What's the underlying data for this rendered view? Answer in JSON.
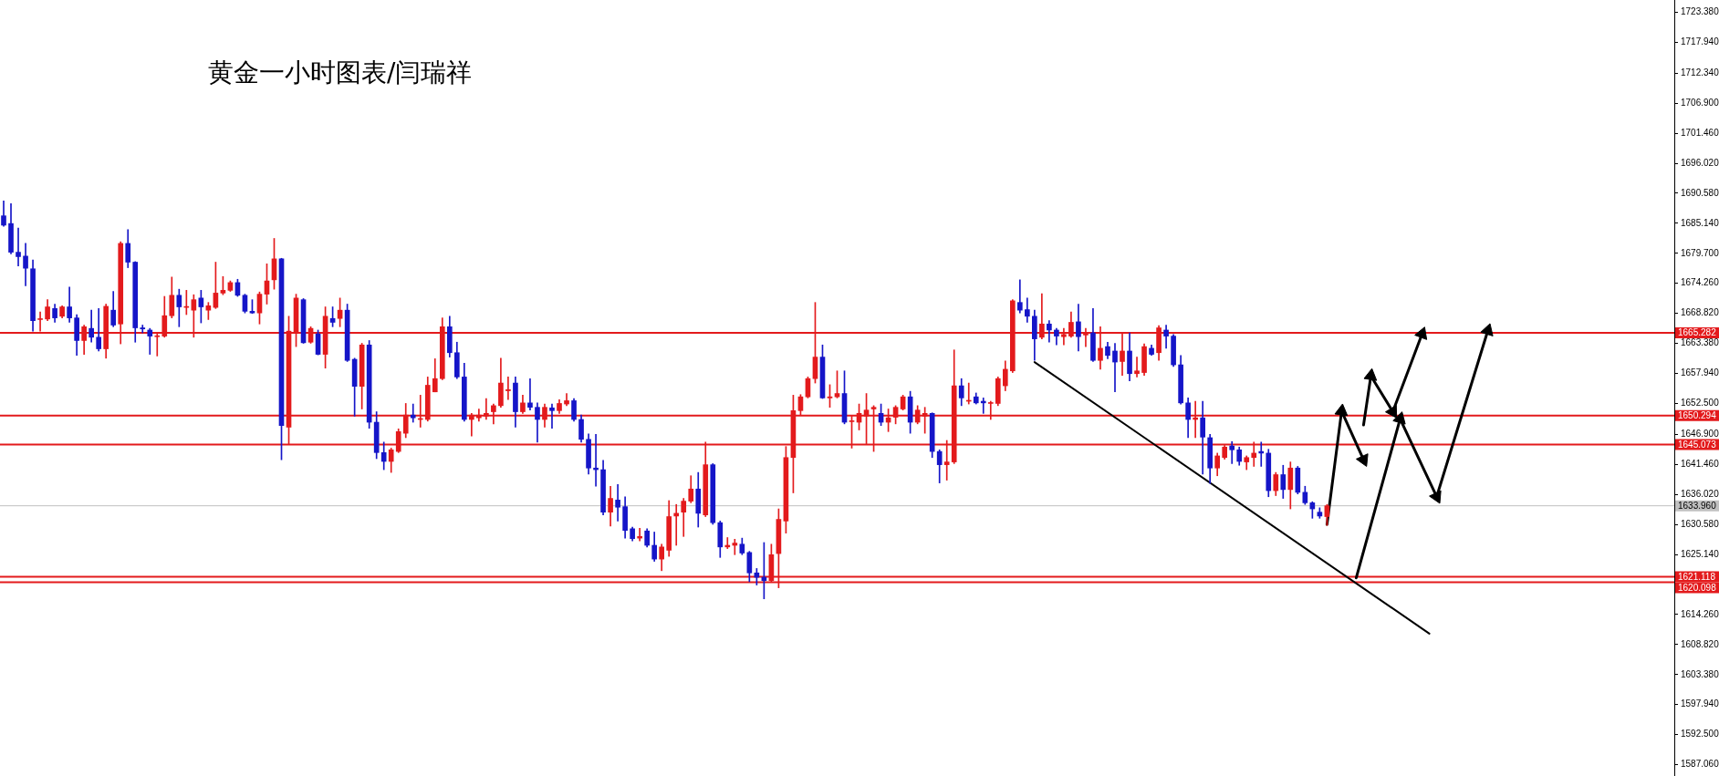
{
  "chart_data": {
    "type": "candlestick",
    "title": "黄金一小时图表/闫瑞祥",
    "categories": [
      null,
      null,
      null,
      null,
      null,
      null,
      null,
      null,
      null,
      null,
      null,
      null,
      null,
      null,
      null,
      null,
      null,
      null,
      null,
      null,
      null,
      null,
      null,
      null,
      null,
      null,
      null,
      null,
      null,
      null,
      null,
      null,
      null,
      null,
      null,
      null,
      null,
      null,
      null,
      null,
      null,
      null,
      null,
      null,
      null,
      null,
      null,
      null,
      null,
      null,
      null,
      null,
      null,
      null,
      null,
      null,
      null,
      null,
      null,
      null,
      null,
      null,
      null,
      null,
      null,
      null,
      null,
      null,
      null,
      null,
      null,
      null,
      null,
      null,
      null,
      null,
      null,
      null,
      null,
      null,
      null,
      null,
      null,
      null,
      null,
      null,
      null,
      null,
      null,
      null,
      null,
      null,
      null,
      null,
      null,
      null,
      null,
      null,
      null,
      null,
      null,
      null,
      null,
      null,
      null,
      null,
      null,
      null,
      null,
      null,
      null,
      null,
      null,
      null,
      null,
      null,
      null,
      null,
      null,
      null,
      null,
      null,
      null,
      null,
      null,
      null,
      null,
      null,
      null,
      null,
      null,
      null,
      null,
      null,
      null,
      null,
      null,
      null,
      null,
      null,
      null,
      null,
      null,
      null,
      null,
      null,
      null,
      null,
      null,
      null,
      null,
      null,
      null,
      null,
      null,
      null,
      null,
      null,
      null,
      null,
      null,
      null,
      null,
      null,
      null,
      null,
      null,
      null,
      null,
      null,
      null,
      null,
      null,
      null,
      null,
      null,
      null,
      null,
      null,
      null,
      null,
      null,
      null,
      null,
      null,
      null,
      null,
      null,
      null,
      null,
      null,
      null,
      null,
      null,
      null,
      null,
      null,
      null,
      null,
      null,
      null,
      null,
      null,
      null,
      null,
      null,
      null,
      null,
      null,
      null,
      null,
      null,
      null,
      null,
      null,
      null,
      null,
      null,
      null,
      null,
      null,
      null,
      null,
      null,
      null,
      null,
      null,
      null,
      null
    ],
    "ohlc": [
      [
        1686.5,
        1689.2,
        1684.6,
        1684.8
      ],
      [
        1685.1,
        1688.7,
        1679.6,
        1679.9
      ],
      [
        1679.9,
        1684.3,
        1677.4,
        1679.1
      ],
      [
        1679.2,
        1681.5,
        1673.8,
        1677.0
      ],
      [
        1676.9,
        1678.5,
        1665.6,
        1667.5
      ],
      [
        1667.7,
        1669.1,
        1665.6,
        1667.8
      ],
      [
        1667.8,
        1671.3,
        1667.5,
        1670.0
      ],
      [
        1669.7,
        1670.5,
        1667.2,
        1668.0
      ],
      [
        1668.3,
        1670.2,
        1668.0,
        1670.0
      ],
      [
        1670.0,
        1673.6,
        1667.2,
        1668.0
      ],
      [
        1668.0,
        1668.6,
        1661.2,
        1663.9
      ],
      [
        1663.9,
        1666.7,
        1661.4,
        1666.4
      ],
      [
        1666.1,
        1669.4,
        1663.6,
        1664.5
      ],
      [
        1664.5,
        1669.7,
        1662.0,
        1662.4
      ],
      [
        1662.4,
        1670.5,
        1660.7,
        1670.1
      ],
      [
        1669.4,
        1672.8,
        1666.4,
        1666.7
      ],
      [
        1666.9,
        1681.8,
        1663.3,
        1681.5
      ],
      [
        1681.5,
        1684.0,
        1677.1,
        1678.1
      ],
      [
        1678.1,
        1678.2,
        1663.6,
        1666.2
      ],
      [
        1666.2,
        1666.7,
        1665.3,
        1666.0
      ],
      [
        1665.8,
        1666.1,
        1661.4,
        1664.7
      ],
      [
        1664.6,
        1665.3,
        1661.1,
        1664.7
      ],
      [
        1664.7,
        1671.9,
        1664.5,
        1668.4
      ],
      [
        1668.4,
        1675.4,
        1668.0,
        1672.1
      ],
      [
        1672.1,
        1673.2,
        1666.4,
        1670.0
      ],
      [
        1669.9,
        1673.0,
        1668.6,
        1670.0
      ],
      [
        1669.4,
        1672.2,
        1664.5,
        1671.3
      ],
      [
        1671.6,
        1673.0,
        1667.1,
        1670.0
      ],
      [
        1669.4,
        1670.8,
        1667.7,
        1670.2
      ],
      [
        1669.9,
        1678.1,
        1669.7,
        1672.5
      ],
      [
        1672.5,
        1675.5,
        1672.2,
        1673.0
      ],
      [
        1673.0,
        1674.7,
        1672.8,
        1674.4
      ],
      [
        1674.4,
        1675.0,
        1671.9,
        1672.1
      ],
      [
        1672.1,
        1672.3,
        1668.9,
        1669.2
      ],
      [
        1669.2,
        1671.3,
        1668.8,
        1668.9
      ],
      [
        1668.9,
        1672.7,
        1666.9,
        1672.3
      ],
      [
        1672.3,
        1677.8,
        1670.5,
        1674.7
      ],
      [
        1674.9,
        1682.4,
        1673.2,
        1678.7
      ],
      [
        1678.7,
        1678.8,
        1642.3,
        1648.5
      ],
      [
        1648.2,
        1668.3,
        1645.2,
        1665.6
      ],
      [
        1665.3,
        1672.3,
        1662.8,
        1671.6
      ],
      [
        1671.3,
        1671.5,
        1663.4,
        1663.5
      ],
      [
        1663.6,
        1666.4,
        1663.4,
        1666.1
      ],
      [
        1665.1,
        1665.8,
        1661.3,
        1661.4
      ],
      [
        1661.4,
        1670.0,
        1658.9,
        1668.3
      ],
      [
        1667.9,
        1670.0,
        1666.4,
        1667.2
      ],
      [
        1667.9,
        1671.6,
        1666.4,
        1669.4
      ],
      [
        1669.4,
        1670.5,
        1660.1,
        1660.3
      ],
      [
        1660.5,
        1660.7,
        1650.2,
        1655.6
      ],
      [
        1655.6,
        1663.4,
        1651.5,
        1663.1
      ],
      [
        1663.1,
        1663.9,
        1648.0,
        1649.1
      ],
      [
        1649.1,
        1651.0,
        1642.5,
        1643.6
      ],
      [
        1643.6,
        1645.5,
        1640.5,
        1642.0
      ],
      [
        1642.0,
        1644.4,
        1640.0,
        1644.1
      ],
      [
        1643.8,
        1647.9,
        1643.6,
        1647.4
      ],
      [
        1647.1,
        1652.5,
        1646.3,
        1650.4
      ],
      [
        1650.4,
        1652.4,
        1649.1,
        1649.9
      ],
      [
        1649.6,
        1654.0,
        1648.2,
        1649.7
      ],
      [
        1649.6,
        1657.3,
        1649.3,
        1655.8
      ],
      [
        1654.6,
        1660.6,
        1654.6,
        1657.0
      ],
      [
        1657.0,
        1668.0,
        1656.8,
        1666.4
      ],
      [
        1666.4,
        1668.3,
        1660.9,
        1661.7
      ],
      [
        1661.7,
        1663.6,
        1657.0,
        1657.3
      ],
      [
        1657.3,
        1659.8,
        1649.3,
        1649.6
      ],
      [
        1649.6,
        1650.7,
        1646.6,
        1650.4
      ],
      [
        1649.9,
        1651.5,
        1649.3,
        1650.4
      ],
      [
        1650.2,
        1653.4,
        1649.6,
        1650.7
      ],
      [
        1651.0,
        1652.4,
        1648.8,
        1652.1
      ],
      [
        1652.1,
        1660.7,
        1651.8,
        1656.2
      ],
      [
        1654.8,
        1657.3,
        1653.2,
        1655.0
      ],
      [
        1656.2,
        1657.3,
        1648.2,
        1651.0
      ],
      [
        1651.0,
        1654.0,
        1650.7,
        1652.6
      ],
      [
        1652.6,
        1657.0,
        1651.3,
        1651.8
      ],
      [
        1651.8,
        1652.6,
        1645.5,
        1649.6
      ],
      [
        1649.6,
        1652.4,
        1648.2,
        1651.8
      ],
      [
        1651.7,
        1652.4,
        1648.0,
        1651.2
      ],
      [
        1651.2,
        1653.2,
        1650.7,
        1652.5
      ],
      [
        1652.4,
        1654.3,
        1652.1,
        1653.0
      ],
      [
        1653.0,
        1653.4,
        1649.3,
        1649.6
      ],
      [
        1649.6,
        1650.4,
        1645.5,
        1646.0
      ],
      [
        1646.0,
        1647.0,
        1639.7,
        1640.8
      ],
      [
        1640.8,
        1646.9,
        1637.5,
        1640.5
      ],
      [
        1640.5,
        1642.2,
        1632.3,
        1632.8
      ],
      [
        1632.8,
        1637.5,
        1630.3,
        1635.3
      ],
      [
        1635.0,
        1637.8,
        1631.2,
        1633.7
      ],
      [
        1633.8,
        1635.6,
        1628.1,
        1629.5
      ],
      [
        1629.8,
        1630.1,
        1627.6,
        1628.0
      ],
      [
        1628.1,
        1629.9,
        1627.6,
        1628.4
      ],
      [
        1629.4,
        1629.8,
        1626.5,
        1626.8
      ],
      [
        1626.8,
        1629.2,
        1623.9,
        1624.3
      ],
      [
        1624.3,
        1627.0,
        1622.2,
        1626.5
      ],
      [
        1625.9,
        1634.9,
        1624.8,
        1632.0
      ],
      [
        1632.1,
        1634.2,
        1626.8,
        1632.6
      ],
      [
        1632.8,
        1635.3,
        1628.4,
        1634.8
      ],
      [
        1634.8,
        1639.4,
        1634.5,
        1637.0
      ],
      [
        1637.0,
        1640.0,
        1630.1,
        1632.6
      ],
      [
        1632.3,
        1645.5,
        1632.0,
        1641.4
      ],
      [
        1641.4,
        1641.6,
        1630.6,
        1630.9
      ],
      [
        1630.9,
        1631.2,
        1624.6,
        1626.5
      ],
      [
        1626.5,
        1628.2,
        1626.2,
        1626.8
      ],
      [
        1626.8,
        1627.9,
        1625.1,
        1627.2
      ],
      [
        1627.0,
        1628.1,
        1625.1,
        1625.4
      ],
      [
        1625.5,
        1625.7,
        1620.2,
        1621.8
      ],
      [
        1621.8,
        1622.6,
        1619.6,
        1621.0
      ],
      [
        1621.0,
        1627.3,
        1617.1,
        1620.4
      ],
      [
        1620.4,
        1627.0,
        1620.2,
        1625.1
      ],
      [
        1625.3,
        1633.4,
        1619.1,
        1631.5
      ],
      [
        1631.2,
        1644.7,
        1629.0,
        1642.7
      ],
      [
        1642.7,
        1654.0,
        1636.3,
        1651.2
      ],
      [
        1651.2,
        1654.1,
        1650.4,
        1653.7
      ],
      [
        1653.7,
        1657.3,
        1653.5,
        1657.0
      ],
      [
        1657.0,
        1670.8,
        1656.2,
        1660.9
      ],
      [
        1660.9,
        1663.1,
        1653.4,
        1653.5
      ],
      [
        1653.5,
        1655.9,
        1651.8,
        1653.7
      ],
      [
        1653.7,
        1658.4,
        1653.5,
        1654.3
      ],
      [
        1654.3,
        1658.4,
        1648.8,
        1649.1
      ],
      [
        1649.2,
        1650.2,
        1644.4,
        1649.3
      ],
      [
        1649.1,
        1652.4,
        1647.7,
        1650.7
      ],
      [
        1650.2,
        1654.3,
        1645.2,
        1651.3
      ],
      [
        1651.5,
        1652.1,
        1643.8,
        1651.8
      ],
      [
        1650.7,
        1652.4,
        1648.5,
        1649.1
      ],
      [
        1649.1,
        1651.5,
        1647.4,
        1649.9
      ],
      [
        1650.0,
        1652.1,
        1648.8,
        1651.8
      ],
      [
        1651.5,
        1654.0,
        1651.3,
        1653.7
      ],
      [
        1653.7,
        1654.7,
        1647.1,
        1649.1
      ],
      [
        1649.1,
        1652.1,
        1648.8,
        1651.3
      ],
      [
        1650.2,
        1651.8,
        1647.1,
        1650.7
      ],
      [
        1650.7,
        1650.8,
        1642.7,
        1643.8
      ],
      [
        1643.8,
        1644.1,
        1638.1,
        1641.4
      ],
      [
        1641.4,
        1645.8,
        1638.6,
        1641.9
      ],
      [
        1641.9,
        1662.2,
        1641.6,
        1655.7
      ],
      [
        1655.7,
        1657.0,
        1652.1,
        1653.5
      ],
      [
        1652.9,
        1656.2,
        1652.4,
        1653.0
      ],
      [
        1653.7,
        1654.4,
        1652.4,
        1652.6
      ],
      [
        1652.9,
        1653.5,
        1650.7,
        1652.6
      ],
      [
        1652.5,
        1652.9,
        1649.6,
        1652.6
      ],
      [
        1652.5,
        1657.3,
        1652.1,
        1657.0
      ],
      [
        1655.7,
        1660.2,
        1654.8,
        1658.7
      ],
      [
        1658.4,
        1671.3,
        1658.1,
        1671.1
      ],
      [
        1670.8,
        1674.9,
        1668.9,
        1669.4
      ],
      [
        1669.5,
        1671.6,
        1667.2,
        1668.3
      ],
      [
        1668.3,
        1669.4,
        1660.3,
        1664.2
      ],
      [
        1664.5,
        1672.4,
        1664.2,
        1666.9
      ],
      [
        1666.9,
        1667.5,
        1663.6,
        1665.8
      ],
      [
        1665.8,
        1666.1,
        1663.1,
        1664.7
      ],
      [
        1664.6,
        1666.1,
        1663.1,
        1665.0
      ],
      [
        1664.7,
        1669.1,
        1664.5,
        1667.2
      ],
      [
        1667.3,
        1670.5,
        1662.0,
        1664.6
      ],
      [
        1664.9,
        1666.1,
        1662.8,
        1665.3
      ],
      [
        1665.3,
        1669.7,
        1660.1,
        1660.3
      ],
      [
        1660.3,
        1666.4,
        1658.7,
        1662.5
      ],
      [
        1662.8,
        1663.6,
        1660.6,
        1661.2
      ],
      [
        1662.0,
        1663.4,
        1654.6,
        1660.0
      ],
      [
        1660.1,
        1665.3,
        1657.6,
        1662.0
      ],
      [
        1662.0,
        1665.3,
        1656.6,
        1657.9
      ],
      [
        1657.9,
        1660.9,
        1657.3,
        1658.4
      ],
      [
        1658.1,
        1663.3,
        1657.6,
        1662.8
      ],
      [
        1662.5,
        1663.1,
        1661.2,
        1661.4
      ],
      [
        1661.7,
        1666.6,
        1660.3,
        1666.2
      ],
      [
        1665.8,
        1666.7,
        1662.5,
        1664.7
      ],
      [
        1664.7,
        1665.0,
        1659.2,
        1659.5
      ],
      [
        1659.5,
        1661.2,
        1652.4,
        1652.6
      ],
      [
        1652.6,
        1653.5,
        1646.3,
        1649.6
      ],
      [
        1649.6,
        1652.9,
        1646.3,
        1649.9
      ],
      [
        1649.9,
        1652.9,
        1639.7,
        1646.4
      ],
      [
        1646.3,
        1646.9,
        1638.0,
        1640.8
      ],
      [
        1640.8,
        1643.5,
        1639.4,
        1643.0
      ],
      [
        1642.7,
        1644.9,
        1642.4,
        1644.6
      ],
      [
        1644.8,
        1645.6,
        1641.6,
        1644.1
      ],
      [
        1644.1,
        1644.6,
        1641.3,
        1642.0
      ],
      [
        1641.9,
        1643.0,
        1640.5,
        1642.7
      ],
      [
        1642.7,
        1645.5,
        1641.1,
        1643.5
      ],
      [
        1643.8,
        1645.5,
        1641.1,
        1643.5
      ],
      [
        1643.5,
        1644.2,
        1635.6,
        1636.7
      ],
      [
        1636.7,
        1640.0,
        1635.8,
        1639.6
      ],
      [
        1639.6,
        1641.3,
        1635.3,
        1636.9
      ],
      [
        1636.9,
        1641.9,
        1633.4,
        1640.8
      ],
      [
        1640.8,
        1641.1,
        1636.1,
        1636.4
      ],
      [
        1636.4,
        1637.5,
        1634.2,
        1634.5
      ],
      [
        1634.5,
        1634.7,
        1631.7,
        1633.4
      ],
      [
        1632.8,
        1633.6,
        1631.7,
        1632.1
      ],
      [
        1632.0,
        1634.2,
        1630.4,
        1633.96
      ],
      null,
      null,
      null,
      null,
      null,
      null,
      null,
      null,
      null,
      null,
      null,
      null,
      null,
      null,
      null,
      null,
      null,
      null,
      null,
      null,
      null,
      null,
      null,
      null,
      null,
      null,
      null,
      null,
      null,
      null,
      null,
      null,
      null,
      null,
      null,
      null,
      null,
      null,
      null,
      null,
      null,
      null,
      null,
      null,
      null,
      null,
      null
    ],
    "colors": [
      "#1515c8",
      "#1515c8",
      "#1515c8",
      "#1515c8",
      "#1515c8",
      "#e31a1c",
      "#e31a1c",
      "#1515c8",
      "#e31a1c",
      "#1515c8",
      "#1515c8",
      "#e31a1c",
      "#1515c8",
      "#1515c8",
      "#e31a1c",
      "#1515c8",
      "#e31a1c",
      "#1515c8",
      "#1515c8",
      "#1515c8",
      "#1515c8",
      "#e31a1c",
      "#e31a1c",
      "#e31a1c",
      "#1515c8",
      "#e31a1c",
      "#e31a1c",
      "#1515c8",
      "#e31a1c",
      "#e31a1c",
      "#e31a1c",
      "#e31a1c",
      "#1515c8",
      "#1515c8",
      "#1515c8",
      "#e31a1c",
      "#e31a1c",
      "#e31a1c",
      "#1515c8",
      "#e31a1c",
      "#e31a1c",
      "#1515c8",
      "#e31a1c",
      "#1515c8",
      "#e31a1c",
      "#1515c8",
      "#e31a1c",
      "#1515c8",
      "#1515c8",
      "#e31a1c",
      "#1515c8",
      "#1515c8",
      "#1515c8",
      "#e31a1c",
      "#e31a1c",
      "#e31a1c",
      "#1515c8",
      "#e31a1c",
      "#e31a1c",
      "#e31a1c",
      "#e31a1c",
      "#1515c8",
      "#1515c8",
      "#1515c8",
      "#e31a1c",
      "#e31a1c",
      "#e31a1c",
      "#e31a1c",
      "#e31a1c",
      "#e31a1c",
      "#1515c8",
      "#e31a1c",
      "#1515c8",
      "#1515c8",
      "#e31a1c",
      "#1515c8",
      "#e31a1c",
      "#e31a1c",
      "#1515c8",
      "#1515c8",
      "#1515c8",
      "#1515c8",
      "#1515c8",
      "#e31a1c",
      "#1515c8",
      "#1515c8",
      "#1515c8",
      "#e31a1c",
      "#1515c8",
      "#1515c8",
      "#e31a1c",
      "#e31a1c",
      "#e31a1c",
      "#e31a1c",
      "#e31a1c",
      "#1515c8",
      "#e31a1c",
      "#1515c8",
      "#1515c8",
      "#e31a1c",
      "#e31a1c",
      "#1515c8",
      "#1515c8",
      "#1515c8",
      "#1515c8",
      "#e31a1c",
      "#e31a1c",
      "#e31a1c",
      "#e31a1c",
      "#e31a1c",
      "#e31a1c",
      "#e31a1c",
      "#1515c8",
      "#e31a1c",
      "#e31a1c",
      "#1515c8",
      "#e31a1c",
      "#e31a1c",
      "#e31a1c",
      "#e31a1c",
      "#1515c8",
      "#e31a1c",
      "#e31a1c",
      "#e31a1c",
      "#1515c8",
      "#e31a1c",
      "#e31a1c",
      "#1515c8",
      "#1515c8",
      "#e31a1c",
      "#e31a1c",
      "#1515c8",
      "#e31a1c",
      "#1515c8",
      "#1515c8",
      "#e31a1c",
      "#e31a1c",
      "#e31a1c",
      "#e31a1c",
      "#1515c8",
      "#1515c8",
      "#1515c8",
      "#e31a1c",
      "#1515c8",
      "#1515c8",
      "#e31a1c",
      "#e31a1c",
      "#1515c8",
      "#e31a1c",
      "#1515c8",
      "#e31a1c",
      "#1515c8",
      "#1515c8",
      "#e31a1c",
      "#1515c8",
      "#e31a1c",
      "#e31a1c",
      "#1515c8",
      "#e31a1c",
      "#1515c8",
      "#1515c8",
      "#1515c8",
      "#1515c8",
      "#e31a1c",
      "#1515c8",
      "#1515c8",
      "#e31a1c",
      "#e31a1c",
      "#1515c8",
      "#1515c8",
      "#e31a1c",
      "#e31a1c",
      "#1515c8",
      "#1515c8",
      "#e31a1c",
      "#1515c8",
      "#e31a1c",
      "#1515c8",
      "#1515c8",
      "#1515c8",
      "#1515c8",
      "#e31a1c",
      null,
      null,
      null,
      null,
      null,
      null,
      null,
      null,
      null,
      null,
      null,
      null,
      null,
      null,
      null,
      null,
      null,
      null,
      null,
      null,
      null,
      null,
      null,
      null,
      null,
      null,
      null,
      null,
      null,
      null,
      null,
      null,
      null,
      null,
      null,
      null,
      null,
      null,
      null,
      null,
      null,
      null,
      null,
      null,
      null,
      null,
      null
    ],
    "ylim": [
      1585.0,
      1725.6
    ],
    "yticks": [
      {
        "value": 1587.06,
        "label": "1587.060"
      },
      {
        "value": 1592.5,
        "label": "1592.500"
      },
      {
        "value": 1597.94,
        "label": "1597.940"
      },
      {
        "value": 1603.38,
        "label": "1603.380"
      },
      {
        "value": 1608.82,
        "label": "1608.820"
      },
      {
        "value": 1614.26,
        "label": "1614.260"
      },
      {
        "value": 1625.14,
        "label": "1625.140"
      },
      {
        "value": 1630.58,
        "label": "1630.580"
      },
      {
        "value": 1636.02,
        "label": "1636.020"
      },
      {
        "value": 1641.46,
        "label": "1641.460"
      },
      {
        "value": 1646.9,
        "label": "1646.900"
      },
      {
        "value": 1652.5,
        "label": "1652.500"
      },
      {
        "value": 1657.94,
        "label": "1657.940"
      },
      {
        "value": 1663.38,
        "label": "1663.380"
      },
      {
        "value": 1668.82,
        "label": "1668.820"
      },
      {
        "value": 1674.26,
        "label": "1674.260"
      },
      {
        "value": 1679.7,
        "label": "1679.700"
      },
      {
        "value": 1685.14,
        "label": "1685.140"
      },
      {
        "value": 1690.58,
        "label": "1690.580"
      },
      {
        "value": 1696.02,
        "label": "1696.020"
      },
      {
        "value": 1701.46,
        "label": "1701.460"
      },
      {
        "value": 1706.9,
        "label": "1706.900"
      },
      {
        "value": 1712.34,
        "label": "1712.340"
      },
      {
        "value": 1717.94,
        "label": "1717.940"
      },
      {
        "value": 1723.38,
        "label": "1723.380"
      }
    ],
    "tick_labels": "y",
    "grid": false,
    "legend": false,
    "ref_lines": [
      {
        "axis": "y",
        "value": 1665.282,
        "label": "1665.282",
        "color": "#e31a1c"
      },
      {
        "axis": "y",
        "value": 1650.294,
        "label": "1650.294",
        "color": "#e31a1c"
      },
      {
        "axis": "y",
        "value": 1645.073,
        "label": "1645.073",
        "color": "#e31a1c"
      },
      {
        "axis": "y",
        "value": 1633.96,
        "label": "1633.960",
        "color": "#c0c0c0"
      },
      {
        "axis": "y",
        "value": 1621.118,
        "label": "1621.118",
        "color": "#e31a1c"
      },
      {
        "axis": "y",
        "value": 1620.098,
        "label": "1620.098",
        "color": "#e31a1c"
      }
    ],
    "series": [
      {
        "type": "line",
        "color": "#000000",
        "marker": "none",
        "values": [
          null,
          null,
          null,
          null,
          null,
          null,
          null,
          null,
          null,
          null,
          null,
          null,
          null,
          null,
          null,
          null,
          null,
          null,
          null,
          null,
          null,
          null,
          null,
          null,
          null,
          null,
          null,
          null,
          null,
          null,
          null,
          null,
          null,
          null,
          null,
          null,
          null,
          null,
          null,
          null,
          null,
          null,
          null,
          null,
          null,
          null,
          null,
          null,
          null,
          null,
          null,
          null,
          null,
          null,
          null,
          null,
          null,
          null,
          null,
          null,
          null,
          null,
          null,
          null,
          null,
          null,
          null,
          null,
          null,
          null,
          null,
          null,
          null,
          null,
          null,
          null,
          null,
          null,
          null,
          null,
          null,
          null,
          null,
          null,
          null,
          null,
          null,
          null,
          null,
          null,
          null,
          null,
          null,
          null,
          null,
          null,
          null,
          null,
          null,
          null,
          null,
          null,
          null,
          null,
          null,
          null,
          null,
          null,
          null,
          null,
          null,
          null,
          null,
          null,
          null,
          null,
          null,
          null,
          null,
          null,
          null,
          null,
          null,
          null,
          null,
          null,
          null,
          null,
          null,
          null,
          null,
          null,
          null,
          null,
          null,
          null,
          null,
          null,
          null,
          null,
          null,
          1660.0,
          null,
          null,
          null,
          null,
          null,
          null,
          null,
          null,
          null,
          null,
          null,
          null,
          null,
          null,
          null,
          null,
          null,
          null,
          null,
          null,
          null,
          null,
          null,
          null,
          null,
          null,
          null,
          null,
          null,
          null,
          null,
          null,
          null,
          null,
          null,
          null,
          null,
          null,
          null,
          null,
          null,
          null,
          null,
          null,
          null,
          null,
          null,
          null,
          null,
          null,
          null,
          null,
          null,
          1610.8,
          null,
          null,
          null,
          null,
          null,
          null,
          null,
          null,
          null,
          null,
          null,
          null,
          null,
          null,
          null,
          null,
          null,
          null,
          null,
          null,
          null,
          null,
          null,
          null,
          null,
          null,
          null,
          null,
          null,
          null,
          null,
          null,
          null
        ]
      },
      {
        "type": "line",
        "color": "#000000",
        "marker": "triangle",
        "values": [
          null,
          null,
          null,
          null,
          null,
          null,
          null,
          null,
          null,
          null,
          null,
          null,
          null,
          null,
          null,
          null,
          null,
          null,
          null,
          null,
          null,
          null,
          null,
          null,
          null,
          null,
          null,
          null,
          null,
          null,
          null,
          null,
          null,
          null,
          null,
          null,
          null,
          null,
          null,
          null,
          null,
          null,
          null,
          null,
          null,
          null,
          null,
          null,
          null,
          null,
          null,
          null,
          null,
          null,
          null,
          null,
          null,
          null,
          null,
          null,
          null,
          null,
          null,
          null,
          null,
          null,
          null,
          null,
          null,
          null,
          null,
          null,
          null,
          null,
          null,
          null,
          null,
          null,
          null,
          null,
          null,
          null,
          null,
          null,
          null,
          null,
          null,
          null,
          null,
          null,
          null,
          null,
          null,
          null,
          null,
          null,
          null,
          null,
          null,
          null,
          null,
          null,
          null,
          null,
          null,
          null,
          null,
          null,
          null,
          null,
          null,
          null,
          null,
          null,
          null,
          null,
          null,
          null,
          null,
          null,
          null,
          null,
          null,
          null,
          null,
          null,
          null,
          null,
          null,
          null,
          null,
          null,
          null,
          null,
          null,
          null,
          null,
          null,
          null,
          null,
          null,
          null,
          null,
          null,
          null,
          null,
          null,
          null,
          null,
          null,
          null,
          null,
          null,
          null,
          null,
          null,
          null,
          null,
          null,
          null,
          null,
          null,
          null,
          null,
          null,
          null,
          null,
          null,
          null,
          null,
          null,
          null,
          null,
          null,
          null,
          null,
          null,
          null,
          null,
          null,
          null,
          1630.6,
          null,
          1651.1,
          null,
          null,
          1642.3,
          null,
          null,
          null,
          null,
          null,
          null,
          null,
          null,
          null,
          null,
          null,
          null,
          null,
          null,
          null,
          null,
          null,
          null,
          null,
          null,
          null,
          null,
          null,
          null,
          null,
          null,
          null,
          null,
          null,
          null,
          null,
          null,
          null,
          null,
          null,
          null,
          null,
          null,
          null,
          null,
          null,
          null
        ]
      },
      {
        "type": "line",
        "color": "#000000",
        "marker": "triangle",
        "values": [
          null,
          null,
          null,
          null,
          null,
          null,
          null,
          null,
          null,
          null,
          null,
          null,
          null,
          null,
          null,
          null,
          null,
          null,
          null,
          null,
          null,
          null,
          null,
          null,
          null,
          null,
          null,
          null,
          null,
          null,
          null,
          null,
          null,
          null,
          null,
          null,
          null,
          null,
          null,
          null,
          null,
          null,
          null,
          null,
          null,
          null,
          null,
          null,
          null,
          null,
          null,
          null,
          null,
          null,
          null,
          null,
          null,
          null,
          null,
          null,
          null,
          null,
          null,
          null,
          null,
          null,
          null,
          null,
          null,
          null,
          null,
          null,
          null,
          null,
          null,
          null,
          null,
          null,
          null,
          null,
          null,
          null,
          null,
          null,
          null,
          null,
          null,
          null,
          null,
          null,
          null,
          null,
          null,
          null,
          null,
          null,
          null,
          null,
          null,
          null,
          null,
          null,
          null,
          null,
          null,
          null,
          null,
          null,
          null,
          null,
          null,
          null,
          null,
          null,
          null,
          null,
          null,
          null,
          null,
          null,
          null,
          null,
          null,
          null,
          null,
          null,
          null,
          null,
          null,
          null,
          null,
          null,
          null,
          null,
          null,
          null,
          null,
          null,
          null,
          null,
          null,
          null,
          null,
          null,
          null,
          null,
          null,
          null,
          null,
          null,
          null,
          null,
          null,
          null,
          null,
          null,
          null,
          null,
          null,
          null,
          null,
          null,
          null,
          null,
          null,
          null,
          null,
          null,
          null,
          null,
          null,
          null,
          null,
          null,
          null,
          null,
          null,
          null,
          null,
          null,
          null,
          null,
          null,
          null,
          null,
          null,
          1648.6,
          1657.5,
          null,
          null,
          1651.0,
          null,
          null,
          null,
          1665.1,
          null,
          null,
          null,
          null,
          null,
          null,
          null,
          null,
          null,
          null,
          null,
          null,
          null,
          null,
          null,
          null,
          null,
          null,
          null,
          null,
          null,
          null,
          null,
          null,
          null,
          null,
          null,
          null,
          null,
          null,
          null,
          null,
          null,
          null
        ]
      },
      {
        "type": "line",
        "color": "#000000",
        "marker": "triangle",
        "values": [
          null,
          null,
          null,
          null,
          null,
          null,
          null,
          null,
          null,
          null,
          null,
          null,
          null,
          null,
          null,
          null,
          null,
          null,
          null,
          null,
          null,
          null,
          null,
          null,
          null,
          null,
          null,
          null,
          null,
          null,
          null,
          null,
          null,
          null,
          null,
          null,
          null,
          null,
          null,
          null,
          null,
          null,
          null,
          null,
          null,
          null,
          null,
          null,
          null,
          null,
          null,
          null,
          null,
          null,
          null,
          null,
          null,
          null,
          null,
          null,
          null,
          null,
          null,
          null,
          null,
          null,
          null,
          null,
          null,
          null,
          null,
          null,
          null,
          null,
          null,
          null,
          null,
          null,
          null,
          null,
          null,
          null,
          null,
          null,
          null,
          null,
          null,
          null,
          null,
          null,
          null,
          null,
          null,
          null,
          null,
          null,
          null,
          null,
          null,
          null,
          null,
          null,
          null,
          null,
          null,
          null,
          null,
          null,
          null,
          null,
          null,
          null,
          null,
          null,
          null,
          null,
          null,
          null,
          null,
          null,
          null,
          null,
          null,
          null,
          null,
          null,
          null,
          null,
          null,
          null,
          null,
          null,
          null,
          null,
          null,
          null,
          null,
          null,
          null,
          null,
          null,
          null,
          null,
          null,
          null,
          null,
          null,
          null,
          null,
          null,
          null,
          null,
          null,
          null,
          null,
          null,
          null,
          null,
          null,
          null,
          null,
          null,
          null,
          null,
          null,
          null,
          null,
          null,
          null,
          null,
          null,
          null,
          null,
          null,
          null,
          null,
          null,
          null,
          null,
          null,
          null,
          null,
          null,
          null,
          null,
          1620.9,
          null,
          null,
          null,
          null,
          null,
          1649.7,
          null,
          null,
          null,
          null,
          1635.6,
          null,
          null,
          null,
          null,
          null,
          null,
          1665.7,
          null,
          null,
          null,
          null,
          null,
          null,
          null,
          null,
          null,
          null,
          null,
          null,
          null,
          null,
          null,
          null,
          null,
          null,
          null,
          null,
          null,
          null,
          null,
          null,
          null
        ]
      }
    ]
  }
}
